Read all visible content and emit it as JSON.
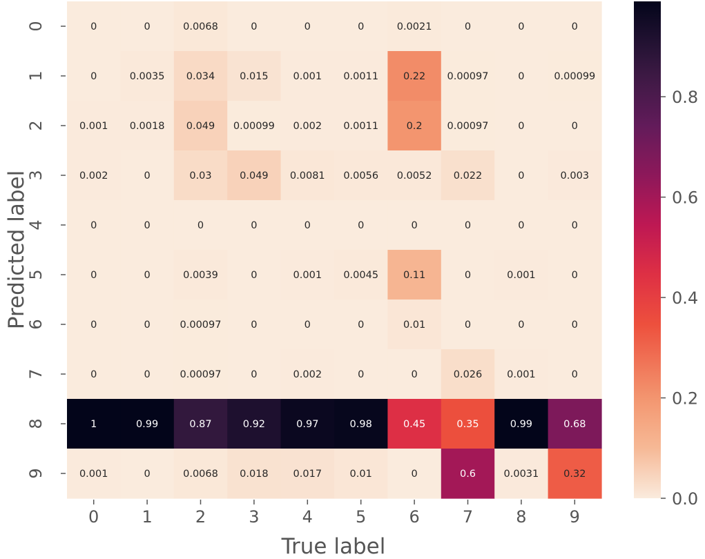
{
  "chart_data": {
    "type": "heatmap",
    "xlabel": "True label",
    "ylabel": "Predicted label",
    "x_categories": [
      "0",
      "1",
      "2",
      "3",
      "4",
      "5",
      "6",
      "7",
      "8",
      "9"
    ],
    "y_categories": [
      "0",
      "1",
      "2",
      "3",
      "4",
      "5",
      "6",
      "7",
      "8",
      "9"
    ],
    "cell_labels": [
      [
        "0",
        "0",
        "0.0068",
        "0",
        "0",
        "0",
        "0.0021",
        "0",
        "0",
        "0"
      ],
      [
        "0",
        "0.0035",
        "0.034",
        "0.015",
        "0.001",
        "0.0011",
        "0.22",
        "0.00097",
        "0",
        "0.00099"
      ],
      [
        "0.001",
        "0.0018",
        "0.049",
        "0.00099",
        "0.002",
        "0.0011",
        "0.2",
        "0.00097",
        "0",
        "0"
      ],
      [
        "0.002",
        "0",
        "0.03",
        "0.049",
        "0.0081",
        "0.0056",
        "0.0052",
        "0.022",
        "0",
        "0.003"
      ],
      [
        "0",
        "0",
        "0",
        "0",
        "0",
        "0",
        "0",
        "0",
        "0",
        "0"
      ],
      [
        "0",
        "0",
        "0.0039",
        "0",
        "0.001",
        "0.0045",
        "0.11",
        "0",
        "0.001",
        "0"
      ],
      [
        "0",
        "0",
        "0.00097",
        "0",
        "0",
        "0",
        "0.01",
        "0",
        "0",
        "0"
      ],
      [
        "0",
        "0",
        "0.00097",
        "0",
        "0.002",
        "0",
        "0",
        "0.026",
        "0.001",
        "0"
      ],
      [
        "1",
        "0.99",
        "0.87",
        "0.92",
        "0.97",
        "0.98",
        "0.45",
        "0.35",
        "0.99",
        "0.68"
      ],
      [
        "0.001",
        "0",
        "0.0068",
        "0.018",
        "0.017",
        "0.01",
        "0",
        "0.6",
        "0.0031",
        "0.32"
      ]
    ],
    "colorbar": {
      "min": 0.0,
      "max": 0.99,
      "ticks": [
        0.0,
        0.2,
        0.4,
        0.6,
        0.8
      ],
      "tick_labels": [
        "0.0",
        "0.2",
        "0.4",
        "0.6",
        "0.8"
      ]
    },
    "colormap": "rocket_r",
    "grid": false,
    "legend": "none"
  }
}
